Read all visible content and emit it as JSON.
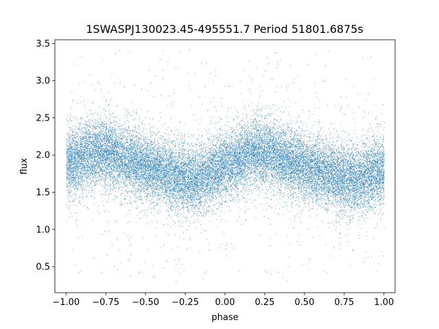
{
  "chart_data": {
    "type": "scatter",
    "title": "1SWASPJ130023.45-495551.7 Period 51801.6875s",
    "xlabel": "phase",
    "ylabel": "flux",
    "xlim": [
      -1.07,
      1.07
    ],
    "ylim": [
      0.15,
      3.55
    ],
    "x_ticks": [
      -1.0,
      -0.75,
      -0.5,
      -0.25,
      0.0,
      0.25,
      0.5,
      0.75,
      1.0
    ],
    "x_tick_labels": [
      "−1.00",
      "−0.75",
      "−0.50",
      "−0.25",
      "0.00",
      "0.25",
      "0.50",
      "0.75",
      "1.00"
    ],
    "y_ticks": [
      0.5,
      1.0,
      1.5,
      2.0,
      2.5,
      3.0,
      3.5
    ],
    "y_tick_labels": [
      "0.5",
      "1.0",
      "1.5",
      "2.0",
      "2.5",
      "3.0",
      "3.5"
    ],
    "grid": false,
    "legend": "none",
    "point_color": "#1f77b4",
    "series": [
      {
        "phase_range": [
          -1.0,
          1.0
        ],
        "mean_flux_curve": {
          "phase": [
            -1.0,
            -0.8,
            -0.6,
            -0.4,
            -0.2,
            0.0,
            0.2,
            0.4,
            0.6,
            0.8,
            1.0
          ],
          "flux": [
            1.9,
            2.05,
            1.92,
            1.78,
            1.68,
            1.85,
            2.05,
            1.92,
            1.78,
            1.68,
            1.8
          ]
        },
        "flux_spread": 0.22,
        "outlier_flux_range": [
          0.3,
          3.45
        ]
      }
    ]
  }
}
